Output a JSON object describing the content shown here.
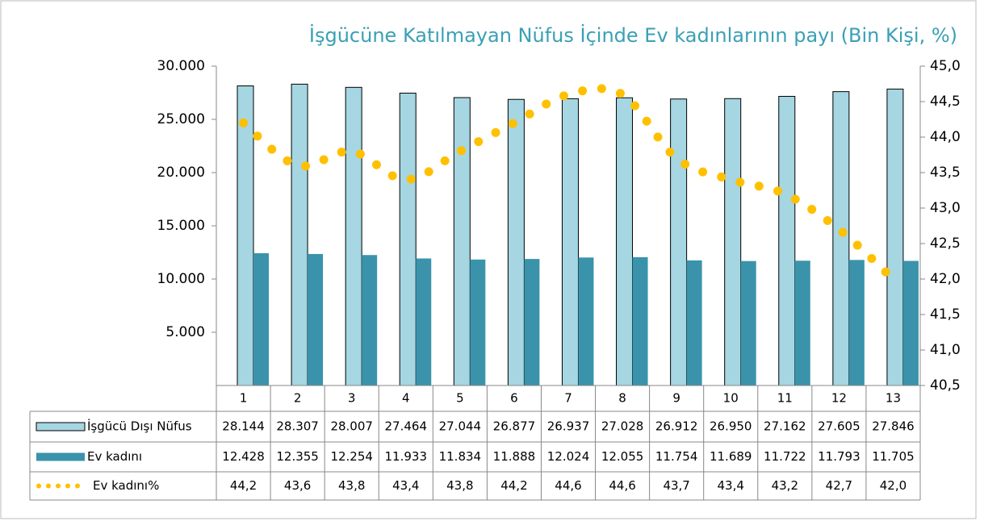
{
  "chart_data": {
    "type": "bar",
    "title": "İşgücüne Katılmayan Nüfus İçinde Ev kadınlarının payı (Bin Kişi, %)",
    "categories": [
      "1",
      "2",
      "3",
      "4",
      "5",
      "6",
      "7",
      "8",
      "9",
      "10",
      "11",
      "12",
      "13"
    ],
    "ylim": [
      0,
      30000
    ],
    "yticks": [
      {
        "value": 5000,
        "label": "5.000"
      },
      {
        "value": 10000,
        "label": "10.000"
      },
      {
        "value": 15000,
        "label": "15.000"
      },
      {
        "value": 20000,
        "label": "20.000"
      },
      {
        "value": 25000,
        "label": "25.000"
      },
      {
        "value": 30000,
        "label": "30.000"
      }
    ],
    "y2lim": [
      40.5,
      45
    ],
    "y2ticks": [
      {
        "value": 40.5,
        "label": "40,5"
      },
      {
        "value": 41,
        "label": "41,0"
      },
      {
        "value": 41.5,
        "label": "41,5"
      },
      {
        "value": 42,
        "label": "42,0"
      },
      {
        "value": 42.5,
        "label": "42,5"
      },
      {
        "value": 43,
        "label": "43,0"
      },
      {
        "value": 43.5,
        "label": "43,5"
      },
      {
        "value": 44,
        "label": "44,0"
      },
      {
        "value": 44.5,
        "label": "44,5"
      },
      {
        "value": 45,
        "label": "45,0"
      }
    ],
    "series": [
      {
        "name": "İşgücü Dışı Nüfus",
        "color": "#a5d6e2",
        "values": [
          28144,
          28307,
          28007,
          27464,
          27044,
          26877,
          26937,
          27028,
          26912,
          26950,
          27162,
          27605,
          27846
        ],
        "value_labels": [
          "28.144",
          "28.307",
          "28.007",
          "27.464",
          "27.044",
          "26.877",
          "26.937",
          "27.028",
          "26.912",
          "26.950",
          "27.162",
          "27.605",
          "27.846"
        ]
      },
      {
        "name": "Ev kadını",
        "color": "#3a93ab",
        "values": [
          12428,
          12355,
          12254,
          11933,
          11834,
          11888,
          12024,
          12055,
          11754,
          11689,
          11722,
          11793,
          11705
        ],
        "value_labels": [
          "12.428",
          "12.355",
          "12.254",
          "11.933",
          "11.834",
          "11.888",
          "12.024",
          "12.055",
          "11.754",
          "11.689",
          "11.722",
          "11.793",
          "11.705"
        ]
      },
      {
        "name": "Ev kadını%",
        "color": "#ffc000",
        "type": "line",
        "axis": "y2",
        "values": [
          44.2,
          43.6,
          43.8,
          43.4,
          43.8,
          44.2,
          44.6,
          44.6,
          43.7,
          43.4,
          43.2,
          42.7,
          42.0
        ],
        "value_labels": [
          "44,2",
          "43,6",
          "43,8",
          "43,4",
          "43,8",
          "44,2",
          "44,6",
          "44,6",
          "43,7",
          "43,4",
          "43,2",
          "42,7",
          "42,0"
        ]
      }
    ]
  }
}
